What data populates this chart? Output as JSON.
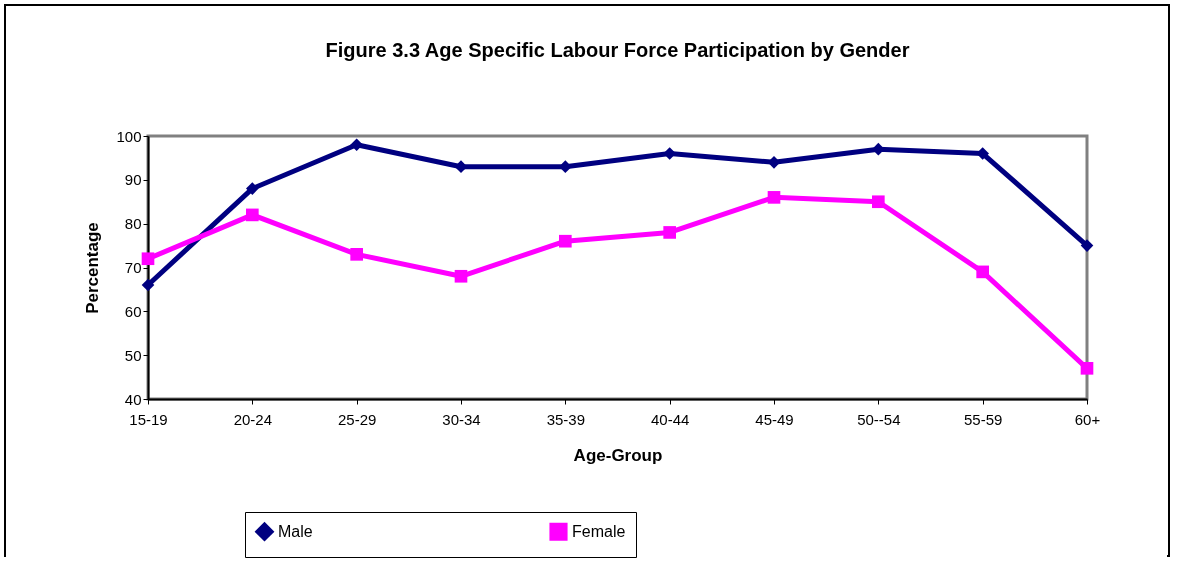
{
  "chart_data": {
    "type": "line",
    "title": "Figure 3.3 Age Specific Labour Force Participation by Gender",
    "xlabel": "Age-Group",
    "ylabel": "Percentage",
    "categories": [
      "15-19",
      "20-24",
      "25-29",
      "30-34",
      "35-39",
      "40-44",
      "45-49",
      "50--54",
      "55-59",
      "60+"
    ],
    "series": [
      {
        "name": "Male",
        "color": "#000080",
        "marker": "diamond",
        "values": [
          66,
          88,
          98,
          93,
          93,
          96,
          94,
          97,
          96,
          75
        ]
      },
      {
        "name": "Female",
        "color": "#ff00ff",
        "marker": "square",
        "values": [
          72,
          82,
          73,
          68,
          76,
          78,
          86,
          85,
          69,
          47
        ]
      }
    ],
    "ylim": [
      40,
      100
    ],
    "yticks": [
      40,
      50,
      60,
      70,
      80,
      90,
      100
    ],
    "grid": false,
    "legend": "bottom"
  }
}
